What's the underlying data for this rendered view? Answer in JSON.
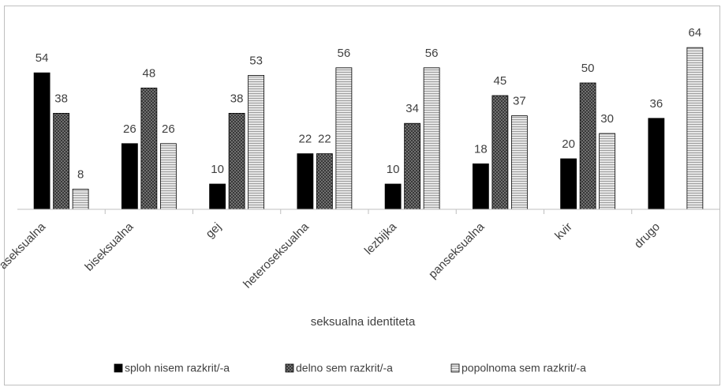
{
  "chart_data": {
    "type": "bar",
    "x_label": "seksualna identiteta",
    "categories": [
      "aseksualna",
      "biseksualna",
      "gej",
      "heteroseksualna",
      "lezbijka",
      "panseksualna",
      "kvir",
      "drugo"
    ],
    "series": [
      {
        "name": "sploh nisem razkrit/-a",
        "color": "#000000",
        "values": [
          54,
          26,
          10,
          22,
          10,
          18,
          20,
          36
        ]
      },
      {
        "name": "delno sem razkrit/-a",
        "color": "#7f7f7f",
        "values": [
          38,
          48,
          38,
          22,
          34,
          45,
          50,
          null
        ]
      },
      {
        "name": "popolnoma sem razkrit/-a",
        "color": "#d0d0d0",
        "values": [
          8,
          26,
          53,
          56,
          56,
          37,
          30,
          64
        ]
      }
    ],
    "legend": "bottom"
  }
}
